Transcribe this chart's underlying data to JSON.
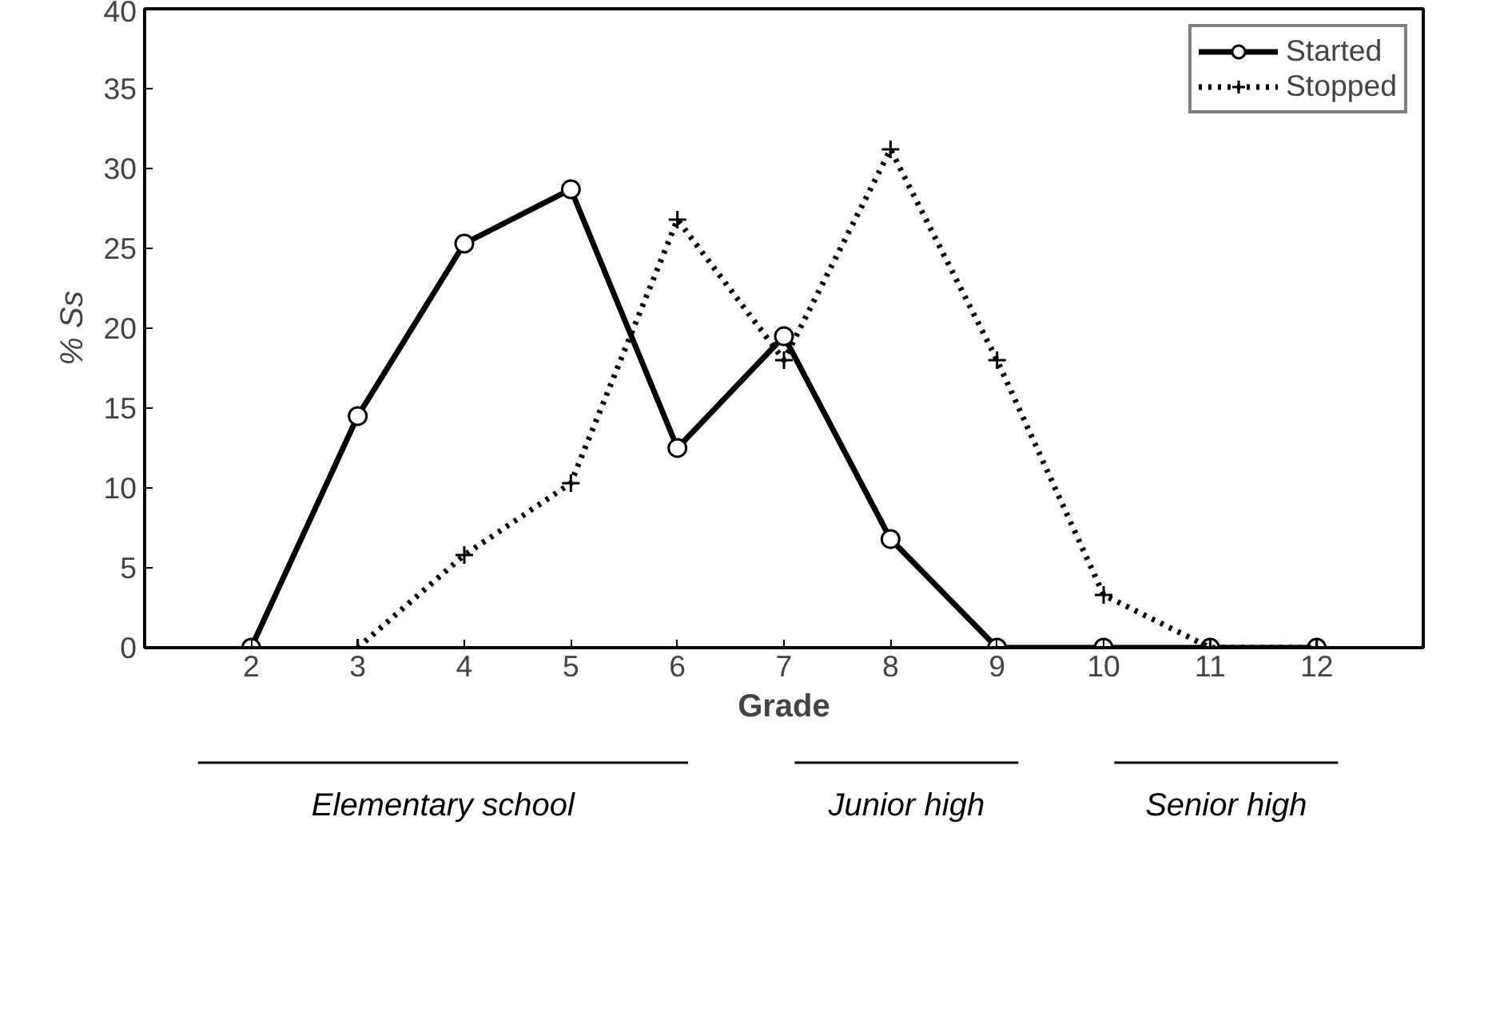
{
  "chart_data": {
    "type": "line",
    "xlabel": "Grade",
    "ylabel": "% Ss",
    "x": [
      2,
      3,
      4,
      5,
      6,
      7,
      8,
      9,
      10,
      11,
      12
    ],
    "xlim": [
      1,
      13
    ],
    "xticks": [
      2,
      3,
      4,
      5,
      6,
      7,
      8,
      9,
      10,
      11,
      12
    ],
    "ylim": [
      0,
      40
    ],
    "yticks": [
      0,
      5,
      10,
      15,
      20,
      25,
      30,
      35,
      40
    ],
    "grid": false,
    "legend": "top right",
    "series": [
      {
        "name": "Started",
        "color": "#000000",
        "marker": "circle",
        "line_style": "solid",
        "values": [
          0,
          14.5,
          25.3,
          28.7,
          12.5,
          19.5,
          6.8,
          0,
          0,
          0,
          0
        ]
      },
      {
        "name": "Stopped",
        "color": "#000000",
        "marker": "cross",
        "line_style": "dotted",
        "values": [
          null,
          0,
          5.8,
          10.3,
          26.8,
          18,
          31.2,
          18,
          3.3,
          0,
          0
        ]
      }
    ],
    "annotations": [
      "Elementary school",
      "Junior high",
      "Senior high"
    ]
  }
}
